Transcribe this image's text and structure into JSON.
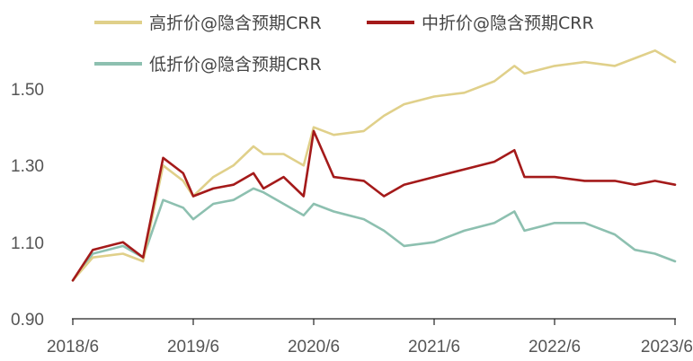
{
  "chart_data": {
    "type": "line",
    "title": "",
    "xlabel": "",
    "ylabel": "",
    "ylim": [
      0.9,
      1.62
    ],
    "yticks": [
      "0.90",
      "1.10",
      "1.30",
      "1.50"
    ],
    "ytick_values": [
      0.9,
      1.1,
      1.3,
      1.5
    ],
    "xticks": [
      "2018/6",
      "2019/6",
      "2020/6",
      "2021/6",
      "2022/6",
      "2023/6"
    ],
    "xlim": [
      "2018/6",
      "2023/6"
    ],
    "grid": false,
    "legend_position": "top",
    "series": [
      {
        "name": "高折价@隐含预期CRR",
        "color": "#e0d08a",
        "x": [
          "2018/6",
          "2018/8",
          "2018/11",
          "2019/1",
          "2019/3",
          "2019/5",
          "2019/6",
          "2019/8",
          "2019/10",
          "2019/12",
          "2020/1",
          "2020/3",
          "2020/5",
          "2020/6",
          "2020/8",
          "2020/11",
          "2021/1",
          "2021/3",
          "2021/6",
          "2021/9",
          "2021/12",
          "2022/2",
          "2022/3",
          "2022/6",
          "2022/9",
          "2022/12",
          "2023/2",
          "2023/4",
          "2023/6"
        ],
        "values": [
          1.0,
          1.06,
          1.07,
          1.05,
          1.3,
          1.26,
          1.22,
          1.27,
          1.3,
          1.35,
          1.33,
          1.33,
          1.3,
          1.4,
          1.38,
          1.39,
          1.43,
          1.46,
          1.48,
          1.49,
          1.52,
          1.56,
          1.54,
          1.56,
          1.57,
          1.56,
          1.58,
          1.6,
          1.57
        ]
      },
      {
        "name": "中折价@隐含预期CRR",
        "color": "#a41a1a",
        "x": [
          "2018/6",
          "2018/8",
          "2018/11",
          "2019/1",
          "2019/3",
          "2019/5",
          "2019/6",
          "2019/8",
          "2019/10",
          "2019/12",
          "2020/1",
          "2020/3",
          "2020/5",
          "2020/6",
          "2020/8",
          "2020/11",
          "2021/1",
          "2021/3",
          "2021/6",
          "2021/9",
          "2021/12",
          "2022/2",
          "2022/3",
          "2022/6",
          "2022/9",
          "2022/12",
          "2023/2",
          "2023/4",
          "2023/6"
        ],
        "values": [
          1.0,
          1.08,
          1.1,
          1.06,
          1.32,
          1.28,
          1.22,
          1.24,
          1.25,
          1.28,
          1.24,
          1.27,
          1.22,
          1.39,
          1.27,
          1.26,
          1.22,
          1.25,
          1.27,
          1.29,
          1.31,
          1.34,
          1.27,
          1.27,
          1.26,
          1.26,
          1.25,
          1.26,
          1.25
        ]
      },
      {
        "name": "低折价@隐含预期CRR",
        "color": "#8dc0b0",
        "x": [
          "2018/6",
          "2018/8",
          "2018/11",
          "2019/1",
          "2019/3",
          "2019/5",
          "2019/6",
          "2019/8",
          "2019/10",
          "2019/12",
          "2020/1",
          "2020/3",
          "2020/5",
          "2020/6",
          "2020/8",
          "2020/11",
          "2021/1",
          "2021/3",
          "2021/6",
          "2021/9",
          "2021/12",
          "2022/2",
          "2022/3",
          "2022/6",
          "2022/9",
          "2022/12",
          "2023/2",
          "2023/4",
          "2023/6"
        ],
        "values": [
          1.0,
          1.07,
          1.09,
          1.06,
          1.21,
          1.19,
          1.16,
          1.2,
          1.21,
          1.24,
          1.23,
          1.2,
          1.17,
          1.2,
          1.18,
          1.16,
          1.13,
          1.09,
          1.1,
          1.13,
          1.15,
          1.18,
          1.13,
          1.15,
          1.15,
          1.12,
          1.08,
          1.07,
          1.05
        ]
      }
    ]
  }
}
